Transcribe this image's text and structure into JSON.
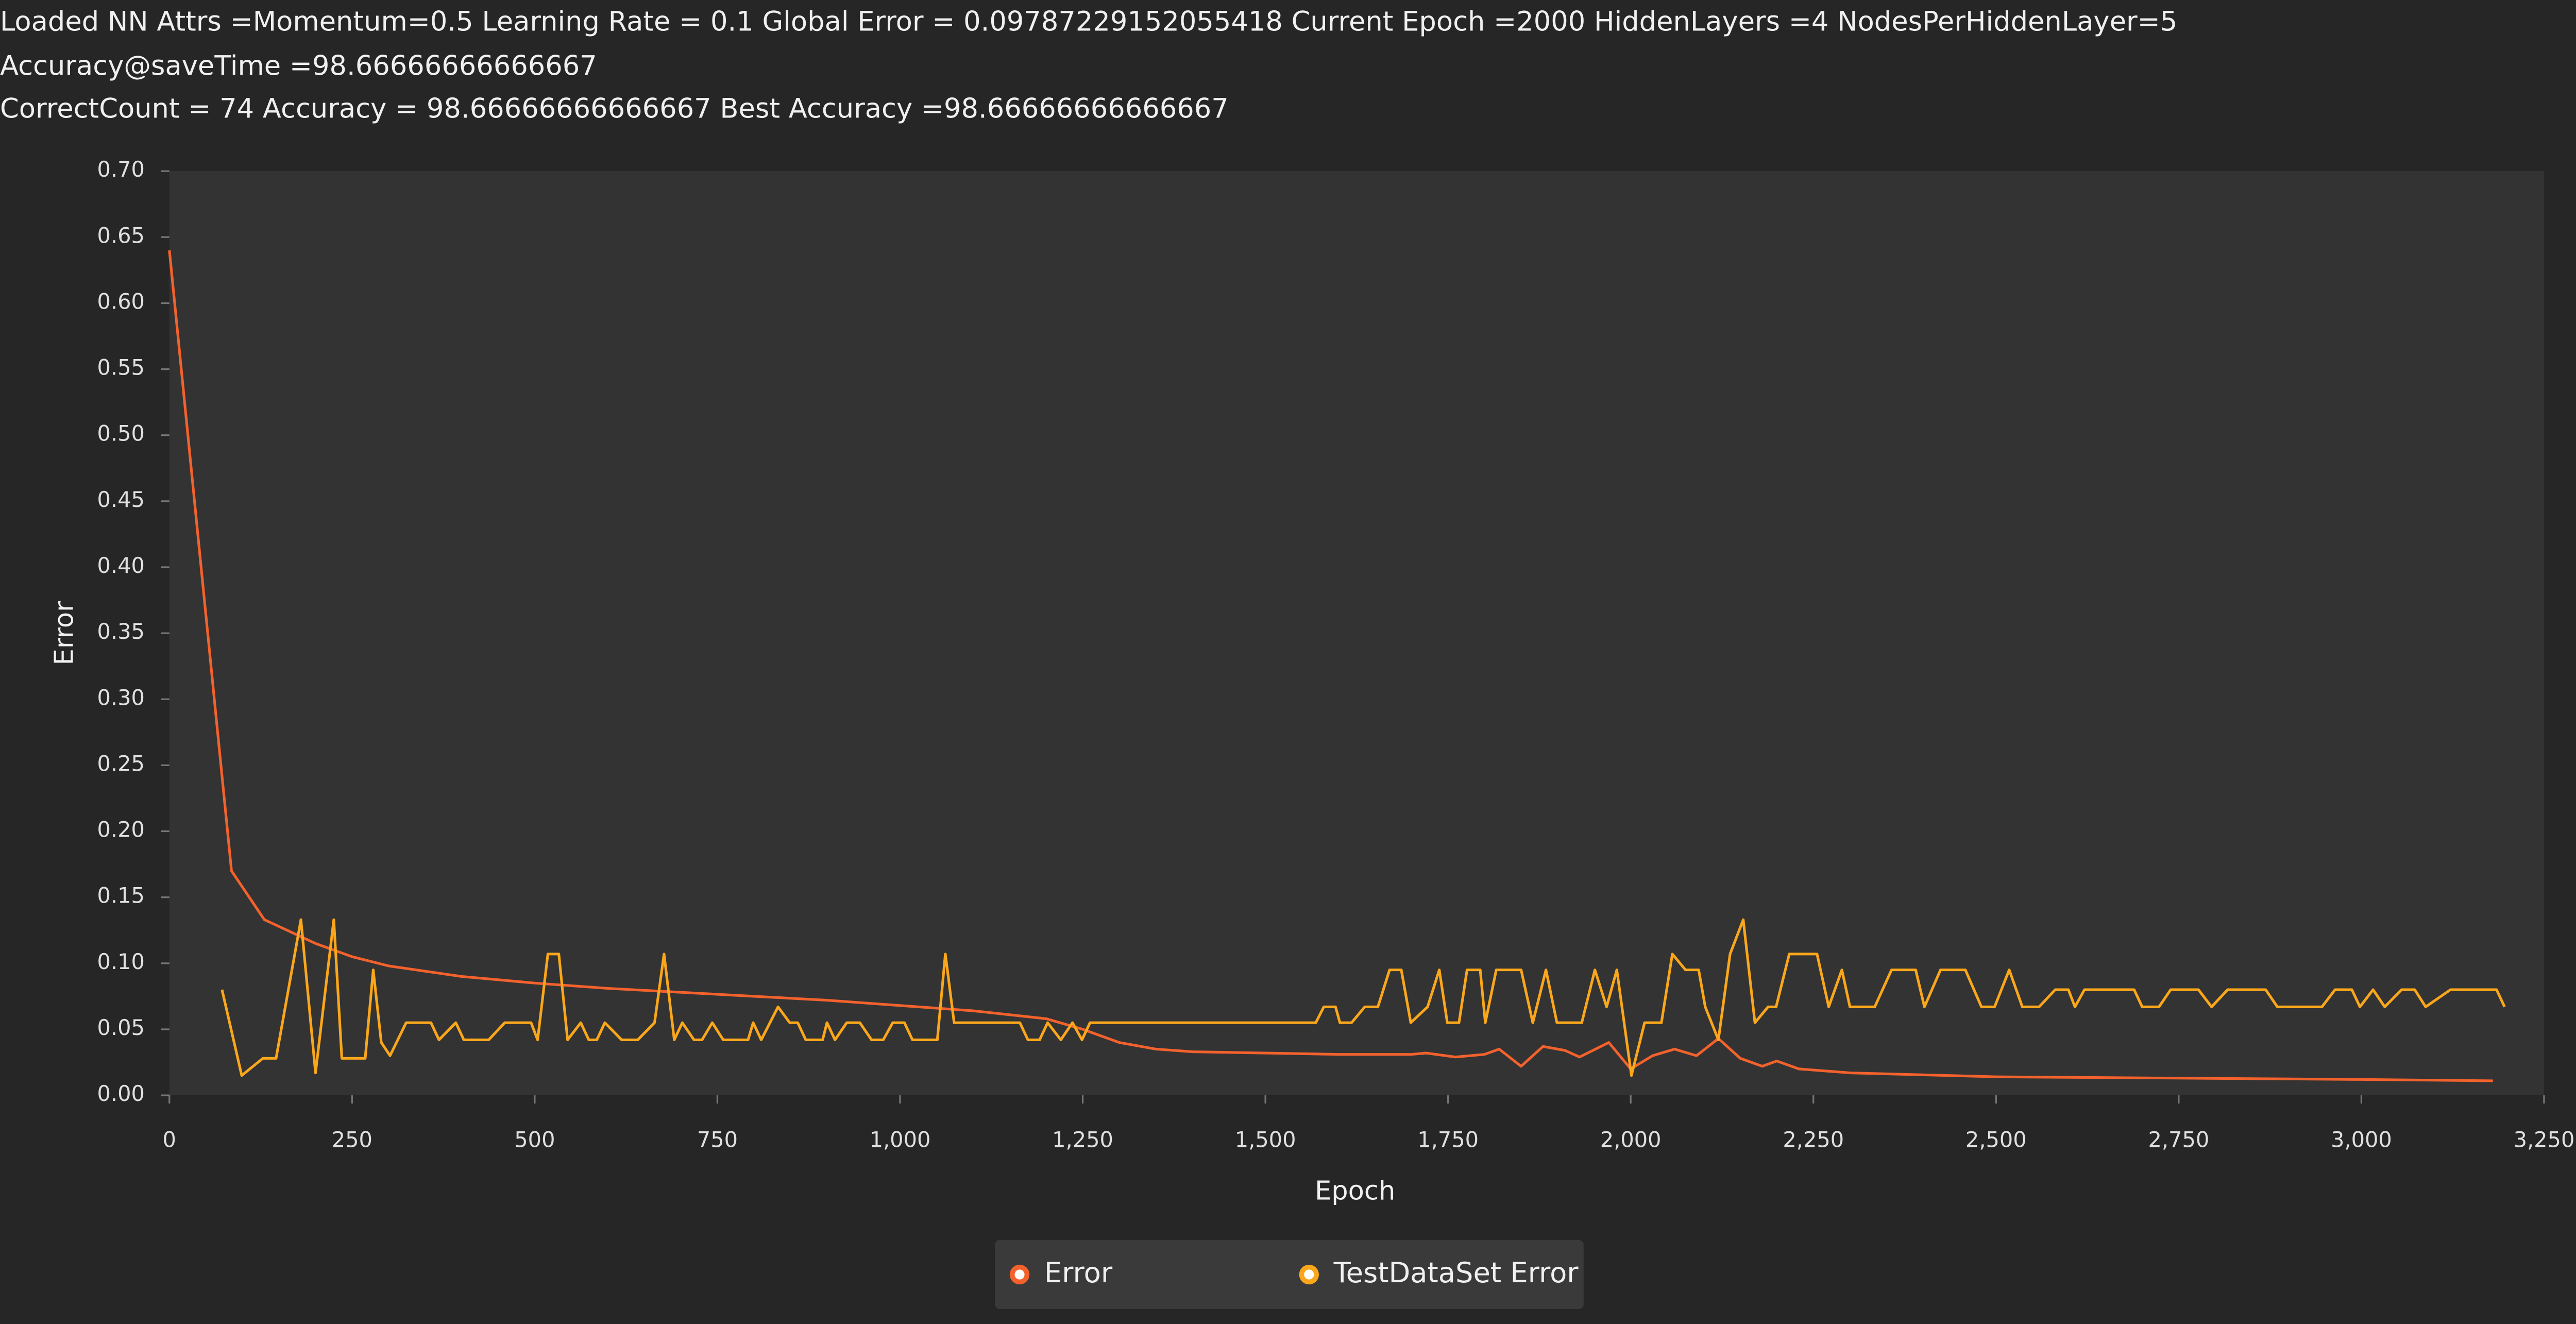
{
  "header": {
    "lines": [
      "Loaded NN Attrs =Momentum=0.5 Learning Rate = 0.1 Global Error = 0.09787229152055418 Current Epoch =2000 HiddenLayers =4 NodesPerHiddenLayer=5",
      "Accuracy@saveTime =98.66666666666667",
      "CorrectCount = 74 Accuracy   = 98.66666666666667 Best Accuracy =98.66666666666667"
    ]
  },
  "chart_data": {
    "type": "line",
    "xlabel": "Epoch",
    "ylabel": "Error",
    "xlim": [
      0,
      3250
    ],
    "xticks": [
      0,
      250,
      500,
      750,
      {
        "value": 1000,
        "label": "1,000"
      },
      {
        "value": 1250,
        "label": "1,250"
      },
      {
        "value": 1500,
        "label": "1,500"
      },
      {
        "value": 1750,
        "label": "1,750"
      },
      {
        "value": 2000,
        "label": "2,000"
      },
      {
        "value": 2250,
        "label": "2,250"
      },
      {
        "value": 2500,
        "label": "2,500"
      },
      {
        "value": 2750,
        "label": "2,750"
      },
      {
        "value": 3000,
        "label": "3,000"
      },
      {
        "value": 3250,
        "label": "3,250"
      }
    ],
    "ylim": [
      0,
      0.7
    ],
    "yticks": [
      {
        "value": 0,
        "label": "0.00"
      },
      {
        "value": 0.05,
        "label": "0.05"
      },
      {
        "value": 0.1,
        "label": "0.10"
      },
      {
        "value": 0.15,
        "label": "0.15"
      },
      {
        "value": 0.2,
        "label": "0.20"
      },
      {
        "value": 0.25,
        "label": "0.25"
      },
      {
        "value": 0.3,
        "label": "0.30"
      },
      {
        "value": 0.35,
        "label": "0.35"
      },
      {
        "value": 0.4,
        "label": "0.40"
      },
      {
        "value": 0.45,
        "label": "0.45"
      },
      {
        "value": 0.5,
        "label": "0.50"
      },
      {
        "value": 0.55,
        "label": "0.55"
      },
      {
        "value": 0.6,
        "label": "0.60"
      },
      {
        "value": 0.65,
        "label": "0.65"
      },
      {
        "value": 0.7,
        "label": "0.70"
      }
    ],
    "legend": "bottom",
    "series": [
      {
        "name": "Error",
        "color": "#f3622d",
        "x": [
          0,
          85,
          130,
          200,
          250,
          300,
          400,
          500,
          600,
          700,
          800,
          900,
          1000,
          1100,
          1200,
          1250,
          1300,
          1350,
          1400,
          1500,
          1600,
          1700,
          1720,
          1760,
          1800,
          1820,
          1850,
          1880,
          1910,
          1930,
          1970,
          2000,
          2030,
          2060,
          2090,
          2120,
          2150,
          2180,
          2200,
          2230,
          2300,
          2500,
          2750,
          3000,
          3180
        ],
        "values": [
          0.64,
          0.17,
          0.133,
          0.115,
          0.105,
          0.098,
          0.09,
          0.085,
          0.081,
          0.078,
          0.075,
          0.072,
          0.068,
          0.064,
          0.058,
          0.05,
          0.04,
          0.035,
          0.033,
          0.032,
          0.031,
          0.031,
          0.032,
          0.029,
          0.031,
          0.035,
          0.022,
          0.037,
          0.034,
          0.029,
          0.04,
          0.02,
          0.03,
          0.035,
          0.03,
          0.043,
          0.028,
          0.022,
          0.026,
          0.02,
          0.017,
          0.014,
          0.013,
          0.012,
          0.011
        ]
      },
      {
        "name": "TestDataSet Error",
        "color": "#fba71b",
        "x": [
          72,
          99,
          128,
          146,
          180,
          200,
          225,
          236,
          268,
          279,
          290,
          302,
          324,
          358,
          369,
          392,
          403,
          437,
          459,
          495,
          504,
          518,
          533,
          545,
          563,
          574,
          585,
          596,
          619,
          641,
          664,
          677,
          691,
          702,
          718,
          729,
          743,
          758,
          792,
          799,
          810,
          833,
          849,
          860,
          871,
          894,
          900,
          911,
          927,
          945,
          961,
          977,
          990,
          1006,
          1017,
          1051,
          1062,
          1074,
          1164,
          1175,
          1191,
          1202,
          1220,
          1236,
          1249,
          1260,
          1569,
          1580,
          1596,
          1602,
          1618,
          1636,
          1654,
          1670,
          1686,
          1699,
          1722,
          1738,
          1749,
          1765,
          1776,
          1794,
          1801,
          1816,
          1850,
          1866,
          1884,
          1899,
          1933,
          1951,
          1967,
          1981,
          2001,
          2019,
          2042,
          2057,
          2075,
          2093,
          2102,
          2120,
          2136,
          2154,
          2170,
          2188,
          2199,
          2217,
          2255,
          2271,
          2289,
          2300,
          2334,
          2357,
          2390,
          2402,
          2424,
          2458,
          2480,
          2498,
          2518,
          2536,
          2559,
          2581,
          2599,
          2608,
          2621,
          2689,
          2700,
          2723,
          2739,
          2777,
          2795,
          2817,
          2869,
          2885,
          2946,
          2964,
          2987,
          2998,
          3016,
          3032,
          3055,
          3073,
          3088,
          3122,
          3185,
          3196
        ],
        "values": [
          0.08,
          0.015,
          0.028,
          0.028,
          0.133,
          0.017,
          0.133,
          0.028,
          0.028,
          0.095,
          0.04,
          0.03,
          0.055,
          0.055,
          0.042,
          0.055,
          0.042,
          0.042,
          0.055,
          0.055,
          0.042,
          0.107,
          0.107,
          0.042,
          0.055,
          0.042,
          0.042,
          0.055,
          0.042,
          0.042,
          0.055,
          0.107,
          0.042,
          0.055,
          0.042,
          0.042,
          0.055,
          0.042,
          0.042,
          0.055,
          0.042,
          0.067,
          0.055,
          0.055,
          0.042,
          0.042,
          0.055,
          0.042,
          0.055,
          0.055,
          0.042,
          0.042,
          0.055,
          0.055,
          0.042,
          0.042,
          0.107,
          0.055,
          0.055,
          0.042,
          0.042,
          0.055,
          0.042,
          0.055,
          0.042,
          0.055,
          0.055,
          0.067,
          0.067,
          0.055,
          0.055,
          0.067,
          0.067,
          0.095,
          0.095,
          0.055,
          0.067,
          0.095,
          0.055,
          0.055,
          0.095,
          0.095,
          0.055,
          0.095,
          0.095,
          0.055,
          0.095,
          0.055,
          0.055,
          0.095,
          0.067,
          0.095,
          0.015,
          0.055,
          0.055,
          0.107,
          0.095,
          0.095,
          0.067,
          0.042,
          0.107,
          0.133,
          0.055,
          0.067,
          0.067,
          0.107,
          0.107,
          0.067,
          0.095,
          0.067,
          0.067,
          0.095,
          0.095,
          0.067,
          0.095,
          0.095,
          0.067,
          0.067,
          0.095,
          0.067,
          0.067,
          0.08,
          0.08,
          0.067,
          0.08,
          0.08,
          0.067,
          0.067,
          0.08,
          0.08,
          0.067,
          0.08,
          0.08,
          0.067,
          0.067,
          0.08,
          0.08,
          0.067,
          0.08,
          0.067,
          0.08,
          0.08,
          0.067,
          0.08,
          0.08,
          0.067
        ]
      }
    ]
  }
}
